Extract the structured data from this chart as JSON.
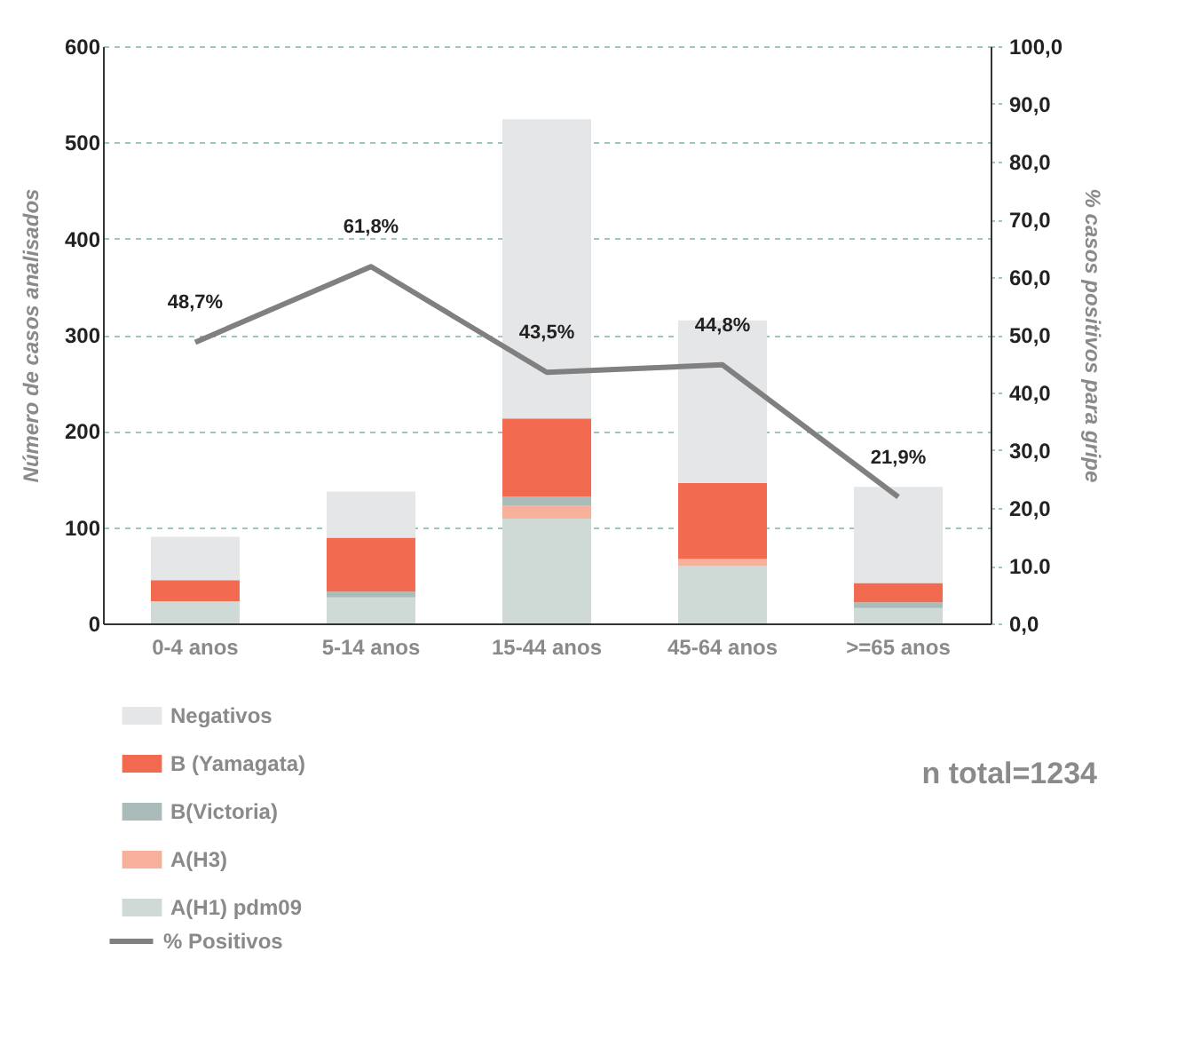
{
  "chart_data": {
    "type": "bar",
    "stacked": true,
    "categories": [
      "0-4 anos",
      "5-14 anos",
      "15-44 anos",
      "45-64 anos",
      ">=65 anos"
    ],
    "series": [
      {
        "name": "A(H1) pdm09",
        "color": "#cfdad7",
        "values": [
          23,
          27,
          109,
          60,
          16
        ]
      },
      {
        "name": "A(H3)",
        "color": "#f7b19a",
        "values": [
          0,
          0,
          13,
          7,
          0
        ]
      },
      {
        "name": "B(Victoria)",
        "color": "#a9bcba",
        "values": [
          0,
          6,
          10,
          0,
          6
        ]
      },
      {
        "name": "B (Yamagata)",
        "color": "#f26b50",
        "values": [
          22,
          56,
          81,
          79,
          20
        ]
      },
      {
        "name": "Negativos",
        "color": "#e5e6e8",
        "values": [
          45,
          48,
          311,
          169,
          100
        ]
      },
      {
        "name": "% Positivos",
        "type": "line",
        "axis": "y2",
        "color": "#808080",
        "values": [
          48.7,
          61.8,
          43.5,
          44.8,
          21.9
        ],
        "value_labels": [
          "48,7%",
          "61,8%",
          "43,5%",
          "44,8%",
          "21,9%"
        ]
      }
    ],
    "ylabel": "Número de casos analisados",
    "y2label": "% casos positivos para gripe",
    "ylim": [
      0,
      600
    ],
    "yticks": [
      0,
      100,
      200,
      300,
      400,
      500,
      600
    ],
    "y2lim": [
      0,
      100
    ],
    "y2ticks": [
      {
        "value": 0,
        "label": "0,0"
      },
      {
        "value": 10,
        "label": "10.0"
      },
      {
        "value": 20,
        "label": "20,0"
      },
      {
        "value": 30,
        "label": "30,0"
      },
      {
        "value": 40,
        "label": "40,0"
      },
      {
        "value": 50,
        "label": "50,0"
      },
      {
        "value": 60,
        "label": "60,0"
      },
      {
        "value": 70,
        "label": "70,0"
      },
      {
        "value": 80,
        "label": "80,0"
      },
      {
        "value": 90,
        "label": "90,0"
      },
      {
        "value": 100,
        "label": "100,0"
      }
    ],
    "grid": "y",
    "legend": "bottom left",
    "annotations": [
      "n total=1234"
    ]
  }
}
